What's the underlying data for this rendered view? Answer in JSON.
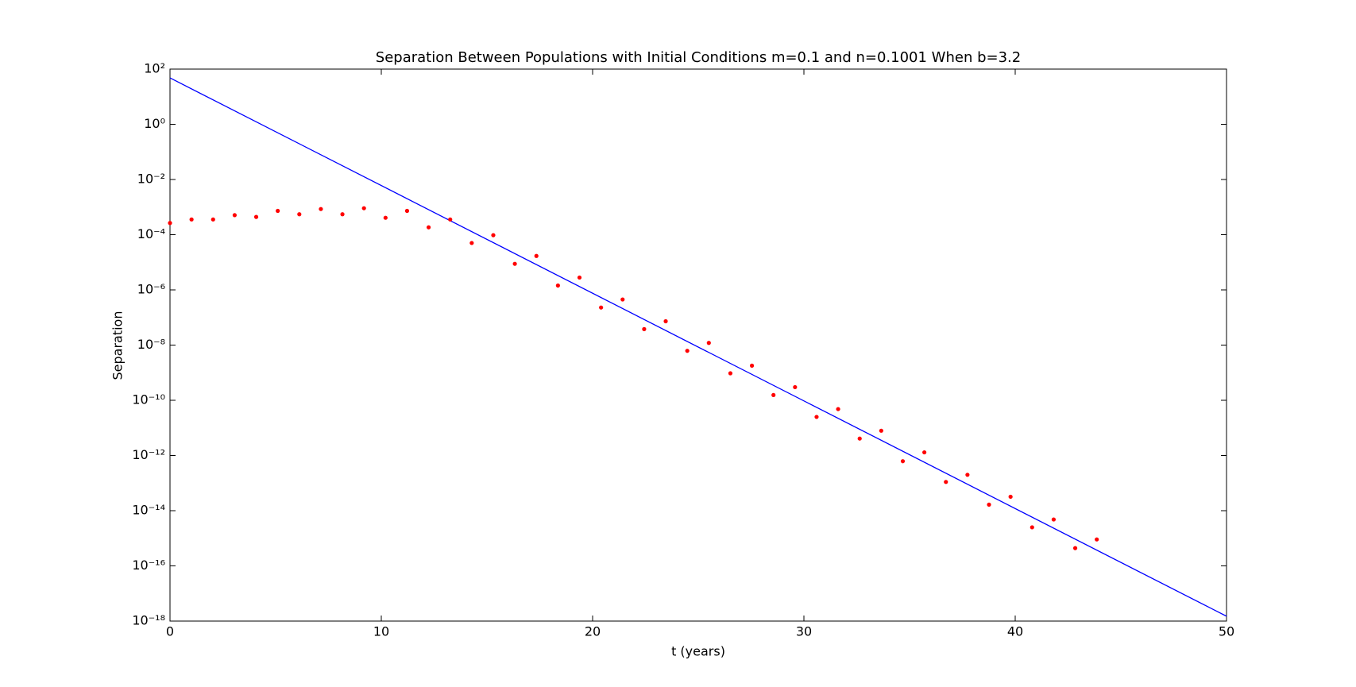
{
  "chart_data": {
    "type": "scatter",
    "title": "Separation Between Populations with Initial Conditions m=0.1 and n=0.1001 When b=3.2",
    "xlabel": "t (years)",
    "ylabel": "Separation",
    "xlim": [
      0,
      50
    ],
    "xticks": [
      0,
      10,
      20,
      30,
      40,
      50
    ],
    "ylim": [
      1e-18,
      100
    ],
    "yscale": "log",
    "yticks": [
      {
        "value": 100,
        "label": "10²"
      },
      {
        "value": 1,
        "label": "10⁰"
      },
      {
        "value": 0.01,
        "label": "10⁻²"
      },
      {
        "value": 0.0001,
        "label": "10⁻⁴"
      },
      {
        "value": 1e-06,
        "label": "10⁻⁶"
      },
      {
        "value": 1e-08,
        "label": "10⁻⁸"
      },
      {
        "value": 1e-10,
        "label": "10⁻¹⁰"
      },
      {
        "value": 1e-12,
        "label": "10⁻¹²"
      },
      {
        "value": 1e-14,
        "label": "10⁻¹⁴"
      },
      {
        "value": 1e-16,
        "label": "10⁻¹⁶"
      },
      {
        "value": 1e-18,
        "label": "10⁻¹⁸"
      }
    ],
    "grid": false,
    "series": [
      {
        "type": "line",
        "color": "#0000ff",
        "x": [
          0,
          50
        ],
        "values": [
          48,
          1.5e-18
        ]
      },
      {
        "type": "scatter",
        "color": "#ff0000",
        "x": [
          0,
          1.02,
          2.04,
          3.06,
          4.08,
          5.1,
          6.12,
          7.14,
          8.16,
          9.18,
          10.2,
          11.22,
          12.24,
          13.26,
          14.28,
          15.3,
          16.32,
          17.34,
          18.36,
          19.38,
          20.4,
          21.42,
          22.44,
          23.46,
          24.48,
          25.5,
          26.52,
          27.54,
          28.56,
          29.58,
          30.6,
          31.62,
          32.64,
          33.66,
          34.68,
          35.7,
          36.72,
          37.74,
          38.76,
          39.78,
          40.8,
          41.82,
          42.84,
          43.86
        ],
        "values": [
          0.000266,
          0.000356,
          0.000356,
          0.00051,
          0.00044,
          0.00073,
          0.00055,
          0.00085,
          0.00055,
          0.00091,
          0.00041,
          0.00073,
          0.000185,
          0.000356,
          5e-05,
          9.6e-05,
          8.8e-06,
          1.7e-05,
          1.44e-06,
          2.8e-06,
          2.3e-07,
          4.5e-07,
          3.8e-08,
          7.3e-08,
          6.2e-09,
          1.2e-08,
          9.5e-10,
          1.8e-09,
          1.55e-10,
          3e-10,
          2.5e-11,
          4.8e-11,
          4.1e-12,
          7.9e-12,
          6.2e-13,
          1.3e-12,
          1.1e-13,
          2e-13,
          1.66e-14,
          3.2e-14,
          2.5e-15,
          4.8e-15,
          4.4e-16,
          9.1e-16
        ]
      }
    ]
  }
}
